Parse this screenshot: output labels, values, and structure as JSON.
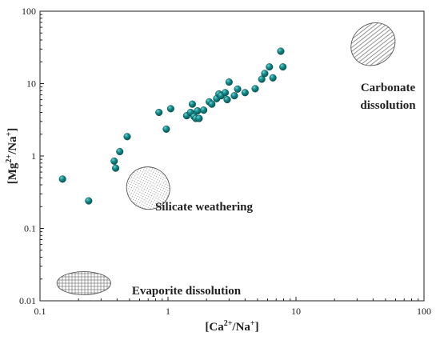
{
  "chart_data": {
    "type": "scatter",
    "xscale": "log",
    "yscale": "log",
    "xlim": [
      0.1,
      100
    ],
    "ylim": [
      0.01,
      100
    ],
    "xticks": [
      "0.1",
      "1",
      "10",
      "100"
    ],
    "yticks": [
      "0.01",
      "0.1",
      "1",
      "10",
      "100"
    ],
    "xlabel": {
      "base": "[Ca",
      "sup": "2+",
      "mid": "/Na",
      "sup2": "+",
      "end": "]"
    },
    "ylabel": {
      "base": "[Mg",
      "sup": "2+",
      "mid": "/Na",
      "sup2": "+",
      "end": "]"
    },
    "grid": false,
    "marker_color": "#0f8080",
    "points": [
      {
        "x": 0.15,
        "y": 0.48
      },
      {
        "x": 0.24,
        "y": 0.24
      },
      {
        "x": 0.38,
        "y": 0.85
      },
      {
        "x": 0.39,
        "y": 0.68
      },
      {
        "x": 0.42,
        "y": 1.15
      },
      {
        "x": 0.48,
        "y": 1.85
      },
      {
        "x": 0.85,
        "y": 4.0
      },
      {
        "x": 0.97,
        "y": 2.35
      },
      {
        "x": 1.05,
        "y": 4.5
      },
      {
        "x": 1.4,
        "y": 3.6
      },
      {
        "x": 1.5,
        "y": 4.0
      },
      {
        "x": 1.55,
        "y": 5.2
      },
      {
        "x": 1.6,
        "y": 3.5
      },
      {
        "x": 1.65,
        "y": 3.3
      },
      {
        "x": 1.7,
        "y": 4.2
      },
      {
        "x": 1.75,
        "y": 3.3
      },
      {
        "x": 1.9,
        "y": 4.3
      },
      {
        "x": 2.1,
        "y": 5.6
      },
      {
        "x": 2.2,
        "y": 5.2
      },
      {
        "x": 2.4,
        "y": 6.2
      },
      {
        "x": 2.5,
        "y": 7.2
      },
      {
        "x": 2.6,
        "y": 6.8
      },
      {
        "x": 2.8,
        "y": 7.5
      },
      {
        "x": 2.9,
        "y": 6.0
      },
      {
        "x": 3.0,
        "y": 10.5
      },
      {
        "x": 3.3,
        "y": 6.8
      },
      {
        "x": 3.5,
        "y": 8.4
      },
      {
        "x": 4.0,
        "y": 7.5
      },
      {
        "x": 4.8,
        "y": 8.5
      },
      {
        "x": 5.4,
        "y": 11.5
      },
      {
        "x": 5.7,
        "y": 13.8
      },
      {
        "x": 6.2,
        "y": 17.0
      },
      {
        "x": 6.6,
        "y": 12.0
      },
      {
        "x": 7.6,
        "y": 28.0
      },
      {
        "x": 7.9,
        "y": 17.0
      }
    ],
    "regions": [
      {
        "name": "carbonate",
        "label_lines": [
          "Carbonate",
          "dissolution"
        ],
        "pattern": "horizontal-lines",
        "ellipse": {
          "cx": 40,
          "cy": 35,
          "rx_decades": 0.18,
          "ry_decades": 0.28,
          "rotate": -38
        }
      },
      {
        "name": "silicate",
        "label_lines": [
          "Silicate weathering"
        ],
        "pattern": "dots",
        "ellipse": {
          "cx": 0.7,
          "cy": 0.36,
          "rx_decades": 0.17,
          "ry_decades": 0.29,
          "rotate": 28
        }
      },
      {
        "name": "evaporite",
        "label_lines": [
          "Evaporite dissolution"
        ],
        "pattern": "grid",
        "ellipse": {
          "cx": 0.22,
          "cy": 0.0175,
          "rx_decades": 0.21,
          "ry_decades": 0.16,
          "rotate": 0
        }
      }
    ]
  }
}
